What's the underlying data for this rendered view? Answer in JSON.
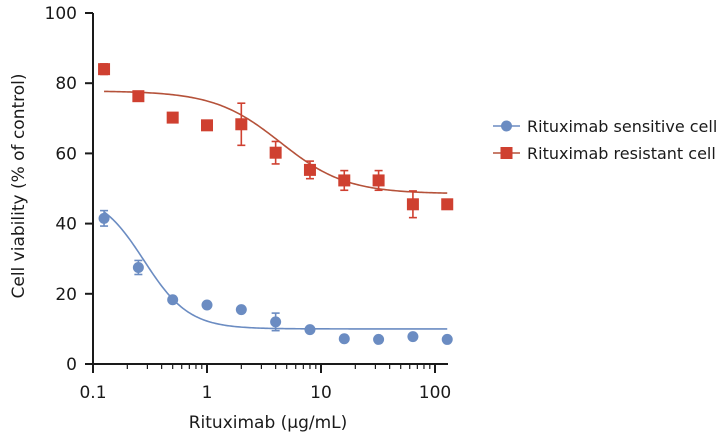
{
  "chart_data": {
    "type": "scatter",
    "title": "",
    "xlabel": "Rituximab (µg/mL)",
    "ylabel": "Cell viability (% of control)",
    "xscale": "log",
    "xlim": [
      0.1,
      130
    ],
    "ylim": [
      0,
      100
    ],
    "x_ticks": [
      0.1,
      1,
      10,
      100
    ],
    "x_tick_labels": [
      "0.1",
      "1",
      "10",
      "100"
    ],
    "y_ticks": [
      0,
      20,
      40,
      60,
      80,
      100
    ],
    "y_tick_labels": [
      "0",
      "20",
      "40",
      "60",
      "80",
      "100"
    ],
    "legend_position": "right",
    "series": [
      {
        "name": "Rituximab sensitive cell",
        "marker": "circle",
        "color": "#6b8cc2",
        "line_color": "#6b8cc2",
        "x": [
          0.125,
          0.25,
          0.5,
          1,
          2,
          4,
          8,
          16,
          32,
          64,
          128
        ],
        "y": [
          41.5,
          27.5,
          18.3,
          16.8,
          15.5,
          12,
          9.8,
          7.2,
          7,
          7.8,
          7
        ],
        "error": [
          2.2,
          2,
          0,
          0,
          0,
          2.5,
          0,
          0,
          0,
          0,
          0
        ],
        "fit": {
          "bottom": 10,
          "top": 49,
          "ec50": 0.28,
          "hill": 2.2
        }
      },
      {
        "name": "Rituximab resistant cell",
        "marker": "square",
        "color": "#cf4030",
        "line_color": "#b5523a",
        "x": [
          0.125,
          0.25,
          0.5,
          1,
          2,
          4,
          8,
          16,
          32,
          64,
          128
        ],
        "y": [
          84,
          76.3,
          70.2,
          68,
          68.3,
          60.2,
          55.3,
          52.3,
          52.3,
          45.5,
          45.5
        ],
        "error": [
          1.5,
          0,
          0,
          0,
          6,
          3.2,
          2.5,
          2.8,
          2.8,
          3.8,
          0
        ],
        "fit": {
          "bottom": 48.5,
          "top": 77.8,
          "ec50": 4.4,
          "hill": 1.5
        }
      }
    ]
  }
}
